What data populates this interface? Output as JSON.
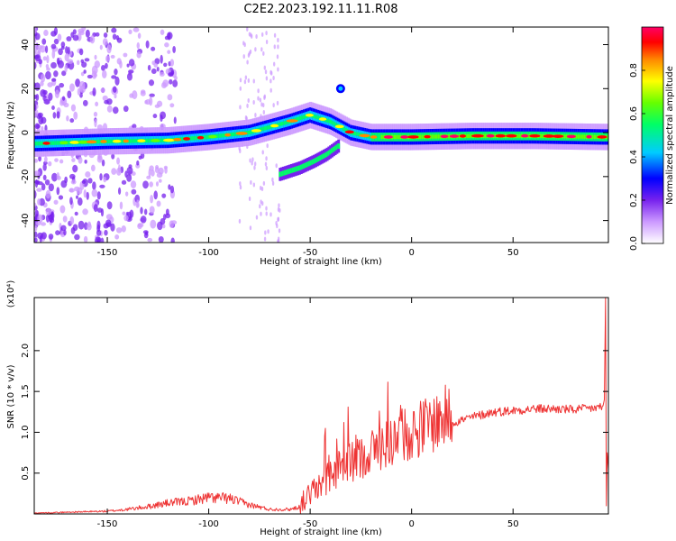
{
  "title": "C2E2.2023.192.11.11.R08",
  "chart_data": [
    {
      "type": "heatmap",
      "xlabel": "Height of straight line (km)",
      "ylabel": "Frequency (Hz)",
      "xlim": [
        -186,
        97
      ],
      "ylim": [
        -50,
        48
      ],
      "xticks": [
        -150,
        -100,
        -50,
        0,
        50
      ],
      "yticks": [
        -40,
        -20,
        0,
        20,
        40
      ],
      "colorbar": {
        "label": "Normalized spectral amplitude",
        "range": [
          0.0,
          1.0
        ],
        "ticks": [
          "0.0",
          "0.2",
          "0.4",
          "0.6",
          "0.8"
        ],
        "colors": [
          "#ffffff",
          "#cc99ff",
          "#7722ee",
          "#0000ff",
          "#00ccff",
          "#00ff66",
          "#66ff00",
          "#ffff00",
          "#ff8800",
          "#ff0000",
          "#ff0066"
        ]
      },
      "features": [
        {
          "name": "main-trace",
          "x": [
            -185,
            -150,
            -120,
            -100,
            -80,
            -60,
            -50,
            -40,
            -30,
            -20,
            0,
            30,
            60,
            95
          ],
          "y": [
            -5,
            -4,
            -3.5,
            -2,
            0,
            5,
            8,
            5,
            0,
            -2,
            -2,
            -1.5,
            -1.5,
            -2
          ]
        },
        {
          "name": "lower-branch",
          "x": [
            -65,
            -55,
            -48,
            -42,
            -36
          ],
          "y": [
            -19,
            -16,
            -13,
            -10,
            -6
          ]
        }
      ]
    },
    {
      "type": "line",
      "xlabel": "Height of straight line (km)",
      "ylabel": "SNR (10 * v/v)",
      "scale_label": "(x10⁴)",
      "xlim": [
        -186,
        97
      ],
      "ylim": [
        0,
        2.65
      ],
      "xticks": [
        -150,
        -100,
        -50,
        0,
        50
      ],
      "yticks": [
        "0.5",
        "1.0",
        "1.5",
        "2.0"
      ],
      "color": "#ee3333",
      "envelope": {
        "x": [
          -186,
          -150,
          -140,
          -130,
          -120,
          -110,
          -100,
          -90,
          -80,
          -70,
          -60,
          -55,
          -50,
          -45,
          -40,
          -30,
          -20,
          -10,
          0,
          10,
          20,
          30,
          40,
          50,
          60,
          70,
          80,
          90,
          95,
          96,
          97
        ],
        "y": [
          0.01,
          0.03,
          0.05,
          0.08,
          0.12,
          0.14,
          0.18,
          0.17,
          0.1,
          0.05,
          0.05,
          0.08,
          0.2,
          0.3,
          0.42,
          0.55,
          0.68,
          0.8,
          0.9,
          1.0,
          1.1,
          1.17,
          1.23,
          1.25,
          1.27,
          1.27,
          1.26,
          1.28,
          1.3,
          2.45,
          0.6
        ]
      }
    }
  ]
}
